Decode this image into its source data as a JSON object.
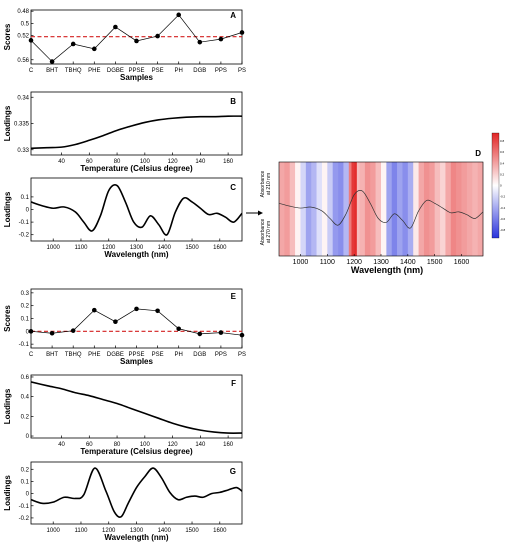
{
  "chart_data": [
    {
      "type": "line",
      "panel": "A",
      "categories": [
        "C",
        "BHT",
        "TBHQ",
        "PHE",
        "DGBE",
        "PPSE",
        "PSE",
        "PH",
        "DGB",
        "PPS",
        "PS"
      ],
      "values": [
        0.528,
        0.563,
        0.534,
        0.542,
        0.506,
        0.529,
        0.521,
        0.486,
        0.531,
        0.526,
        0.515
      ],
      "reference_line": 0.522,
      "yticks": [
        0.56,
        0.52,
        0.5,
        0.48
      ],
      "ylim": [
        0.567,
        0.478
      ],
      "y_inverted": true,
      "xlabel": "Samples",
      "ylabel": "Scores"
    },
    {
      "type": "line",
      "panel": "B",
      "x": [
        10,
        20,
        30,
        40,
        50,
        60,
        70,
        80,
        90,
        100,
        110,
        120,
        130,
        140,
        150,
        160,
        170
      ],
      "values": [
        0.3302,
        0.3303,
        0.3304,
        0.3305,
        0.331,
        0.3318,
        0.3327,
        0.3337,
        0.3345,
        0.3352,
        0.3357,
        0.336,
        0.3362,
        0.3363,
        0.3363,
        0.3364,
        0.3364
      ],
      "xticks": [
        40,
        60,
        80,
        100,
        120,
        140,
        160
      ],
      "yticks": [
        0.34,
        0.335,
        0.33
      ],
      "xlim": [
        18,
        170
      ],
      "ylim": [
        0.329,
        0.341
      ],
      "xlabel": "Temperature (Celsius degree)",
      "ylabel": "Loadings"
    },
    {
      "type": "line",
      "panel": "C",
      "x": [
        920,
        960,
        1000,
        1040,
        1080,
        1110,
        1140,
        1170,
        1200,
        1230,
        1260,
        1290,
        1320,
        1350,
        1380,
        1410,
        1440,
        1470,
        1500,
        1530,
        1560,
        1590,
        1620,
        1650,
        1680
      ],
      "values": [
        0.06,
        0.03,
        0.01,
        0.02,
        -0.02,
        -0.1,
        -0.17,
        -0.05,
        0.15,
        0.19,
        0.06,
        -0.1,
        -0.14,
        -0.05,
        -0.12,
        -0.2,
        -0.02,
        0.09,
        0.06,
        0.01,
        -0.04,
        -0.03,
        -0.06,
        -0.1,
        -0.03
      ],
      "xticks": [
        1000,
        1100,
        1200,
        1300,
        1400,
        1500,
        1600
      ],
      "yticks": [
        0.1,
        0,
        -0.1,
        -0.2
      ],
      "xlim": [
        920,
        1680
      ],
      "ylim": [
        -0.25,
        0.25
      ],
      "xlabel": "Wavelength (nm)",
      "ylabel": "Loadings"
    },
    {
      "type": "heatmap",
      "panel": "D",
      "x_range": [
        920,
        1680
      ],
      "xticks": [
        1000,
        1100,
        1200,
        1300,
        1400,
        1500,
        1600
      ],
      "xlabel": "Wavelength (nm)",
      "row_labels": [
        "Absorbance at 210 nm",
        "Absorbance at 270 nm"
      ],
      "colorbar_ticks": [
        "0.8",
        "0.6",
        "0.4",
        "0.2",
        "0",
        "-0.2",
        "-0.4",
        "-0.6",
        "-0.8"
      ],
      "columns": [
        {
          "x": 920,
          "v": 0.4
        },
        {
          "x": 940,
          "v": 0.45
        },
        {
          "x": 960,
          "v": 0.3
        },
        {
          "x": 980,
          "v": 0.05
        },
        {
          "x": 1000,
          "v": -0.2
        },
        {
          "x": 1020,
          "v": -0.45
        },
        {
          "x": 1040,
          "v": -0.35
        },
        {
          "x": 1060,
          "v": -0.15
        },
        {
          "x": 1080,
          "v": 0.05
        },
        {
          "x": 1100,
          "v": -0.25
        },
        {
          "x": 1120,
          "v": -0.5
        },
        {
          "x": 1140,
          "v": -0.55
        },
        {
          "x": 1160,
          "v": -0.35
        },
        {
          "x": 1180,
          "v": 0.6
        },
        {
          "x": 1190,
          "v": 0.9
        },
        {
          "x": 1200,
          "v": 0.95
        },
        {
          "x": 1210,
          "v": 0.3
        },
        {
          "x": 1220,
          "v": 0.35
        },
        {
          "x": 1240,
          "v": 0.5
        },
        {
          "x": 1260,
          "v": 0.45
        },
        {
          "x": 1280,
          "v": 0.3
        },
        {
          "x": 1300,
          "v": 0.05
        },
        {
          "x": 1320,
          "v": -0.45
        },
        {
          "x": 1340,
          "v": -0.6
        },
        {
          "x": 1360,
          "v": -0.45
        },
        {
          "x": 1380,
          "v": -0.55
        },
        {
          "x": 1400,
          "v": -0.4
        },
        {
          "x": 1420,
          "v": 0.1
        },
        {
          "x": 1440,
          "v": 0.4
        },
        {
          "x": 1460,
          "v": 0.5
        },
        {
          "x": 1480,
          "v": 0.45
        },
        {
          "x": 1500,
          "v": 0.3
        },
        {
          "x": 1520,
          "v": 0.2
        },
        {
          "x": 1540,
          "v": 0.4
        },
        {
          "x": 1560,
          "v": 0.55
        },
        {
          "x": 1580,
          "v": 0.5
        },
        {
          "x": 1600,
          "v": 0.45
        },
        {
          "x": 1620,
          "v": 0.4
        },
        {
          "x": 1640,
          "v": 0.35
        },
        {
          "x": 1660,
          "v": 0.4
        }
      ]
    },
    {
      "type": "line",
      "panel": "E",
      "categories": [
        "C",
        "BHT",
        "TBHQ",
        "PHE",
        "DGBE",
        "PPSE",
        "PSE",
        "PH",
        "DGB",
        "PPS",
        "PS"
      ],
      "values": [
        0.0,
        -0.015,
        0.005,
        0.165,
        0.075,
        0.175,
        0.16,
        0.02,
        -0.02,
        -0.01,
        -0.03
      ],
      "reference_line": 0.0,
      "yticks": [
        0.3,
        0.2,
        0.1,
        0,
        -0.1
      ],
      "ylim": [
        -0.13,
        0.33
      ],
      "xlabel": "Samples",
      "ylabel": "Scores"
    },
    {
      "type": "line",
      "panel": "F",
      "x": [
        18,
        30,
        40,
        50,
        60,
        70,
        80,
        90,
        100,
        110,
        120,
        130,
        140,
        150,
        160,
        170
      ],
      "values": [
        0.55,
        0.51,
        0.48,
        0.44,
        0.41,
        0.37,
        0.33,
        0.28,
        0.23,
        0.18,
        0.13,
        0.09,
        0.06,
        0.04,
        0.03,
        0.03
      ],
      "xticks": [
        40,
        60,
        80,
        100,
        120,
        140,
        160
      ],
      "yticks": [
        0.6,
        0.4,
        0.2,
        0
      ],
      "xlim": [
        18,
        170
      ],
      "ylim": [
        -0.02,
        0.62
      ],
      "xlabel": "Temperature (Celsius degree)",
      "ylabel": "Loadings"
    },
    {
      "type": "line",
      "panel": "G",
      "x": [
        920,
        960,
        1000,
        1040,
        1080,
        1110,
        1150,
        1190,
        1220,
        1245,
        1270,
        1300,
        1330,
        1360,
        1390,
        1420,
        1450,
        1480,
        1510,
        1540,
        1570,
        1600,
        1630,
        1660,
        1680
      ],
      "values": [
        -0.05,
        -0.08,
        -0.07,
        -0.03,
        -0.04,
        -0.01,
        0.21,
        0.02,
        -0.15,
        -0.19,
        -0.08,
        0.05,
        0.14,
        0.21,
        0.13,
        0.01,
        -0.05,
        -0.03,
        -0.02,
        -0.03,
        0.0,
        0.01,
        0.03,
        0.05,
        0.02
      ],
      "xticks": [
        1000,
        1100,
        1200,
        1300,
        1400,
        1500,
        1600
      ],
      "yticks": [
        0.2,
        0.1,
        0,
        -0.1,
        -0.2
      ],
      "xlim": [
        920,
        1680
      ],
      "ylim": [
        -0.25,
        0.26
      ],
      "xlabel": "Wavelength (nm)",
      "ylabel": "Loadings"
    }
  ]
}
